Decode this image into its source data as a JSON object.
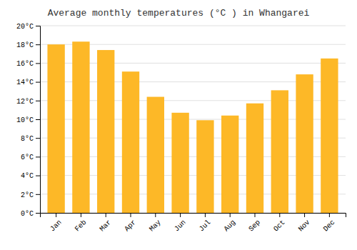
{
  "chart_data": {
    "type": "bar",
    "title": "Average monthly temperatures (°C ) in Whangarei",
    "categories": [
      "Jan",
      "Feb",
      "Mar",
      "Apr",
      "May",
      "Jun",
      "Jul",
      "Aug",
      "Sep",
      "Oct",
      "Nov",
      "Dec"
    ],
    "values": [
      18.0,
      18.3,
      17.4,
      15.1,
      12.4,
      10.7,
      9.9,
      10.4,
      11.7,
      13.1,
      14.8,
      16.5
    ],
    "color": "#FDB827",
    "ylim": [
      0,
      20
    ],
    "yticks": [
      {
        "value": 0,
        "label": "0°C"
      },
      {
        "value": 2,
        "label": "2°C"
      },
      {
        "value": 4,
        "label": "4°C"
      },
      {
        "value": 6,
        "label": "6°C"
      },
      {
        "value": 8,
        "label": "8°C"
      },
      {
        "value": 10,
        "label": "10°C"
      },
      {
        "value": 12,
        "label": "12°C"
      },
      {
        "value": 14,
        "label": "14°C"
      },
      {
        "value": 16,
        "label": "16°C"
      },
      {
        "value": 18,
        "label": "18°C"
      },
      {
        "value": 20,
        "label": "20°C"
      }
    ],
    "grid": true
  }
}
